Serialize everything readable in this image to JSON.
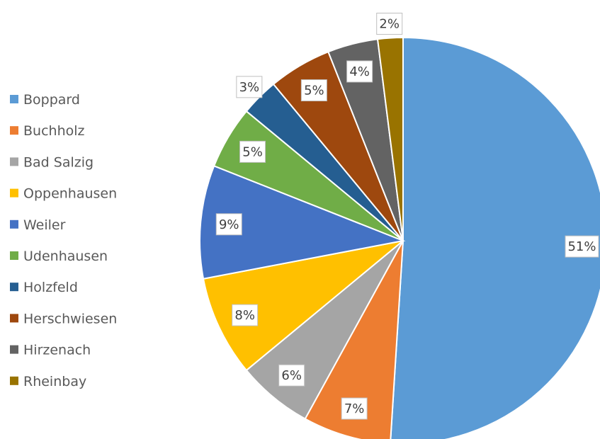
{
  "chart_data": {
    "type": "pie",
    "title": "",
    "legend_position": "left",
    "categories": [
      "Boppard",
      "Buchholz",
      "Bad Salzig",
      "Oppenhausen",
      "Weiler",
      "Udenhausen",
      "Holzfeld",
      "Herschwiesen",
      "Hirzenach",
      "Rheinbay"
    ],
    "values": [
      51,
      7,
      6,
      8,
      9,
      5,
      3,
      5,
      4,
      2
    ],
    "labels": [
      "51%",
      "7%",
      "6%",
      "8%",
      "9%",
      "5%",
      "3%",
      "5%",
      "4%",
      "2%"
    ],
    "colors": [
      "#5B9BD5",
      "#ED7D31",
      "#A5A5A5",
      "#FFC000",
      "#4472C4",
      "#70AD47",
      "#255E91",
      "#9E480E",
      "#636363",
      "#997300"
    ]
  }
}
